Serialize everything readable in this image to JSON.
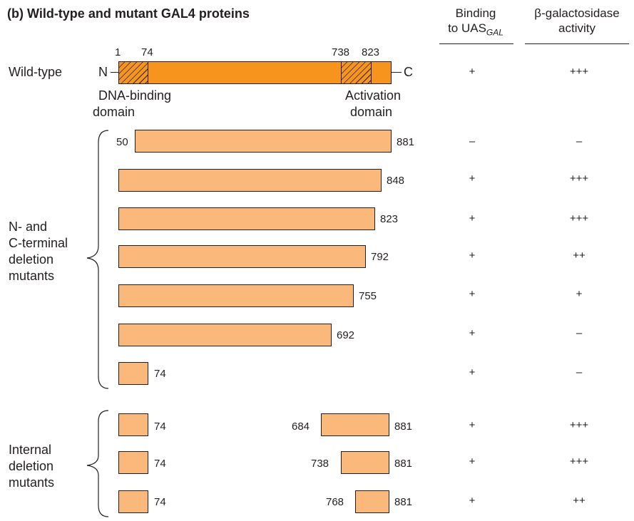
{
  "title": "(b)  Wild-type and mutant GAL4 proteins",
  "columns": {
    "binding_line1": "Binding",
    "binding_line2": "to UAS",
    "binding_sub": "GAL",
    "activity_line1": "β-galactosidase",
    "activity_line2": "activity"
  },
  "wild_type": {
    "label": "Wild-type",
    "n_term": "N",
    "c_term": "C",
    "pos_1": "1",
    "pos_74": "74",
    "pos_738": "738",
    "pos_823": "823",
    "dna_binding_line1": "DNA-binding",
    "dna_binding_line2": "domain",
    "activation_line1": "Activation",
    "activation_line2": "domain",
    "binding": "+",
    "activity": "+++"
  },
  "group_nc": {
    "label_line1": "N- and",
    "label_line2": "C-terminal",
    "label_line3": "deletion",
    "label_line4": "mutants"
  },
  "nc_mutants": [
    {
      "start": "50",
      "end": "881",
      "binding": "–",
      "activity": "–"
    },
    {
      "start": "",
      "end": "848",
      "binding": "+",
      "activity": "+++"
    },
    {
      "start": "",
      "end": "823",
      "binding": "+",
      "activity": "+++"
    },
    {
      "start": "",
      "end": "792",
      "binding": "+",
      "activity": "++"
    },
    {
      "start": "",
      "end": "755",
      "binding": "+",
      "activity": "+"
    },
    {
      "start": "",
      "end": "692",
      "binding": "+",
      "activity": "–"
    },
    {
      "start": "",
      "end": "74",
      "binding": "+",
      "activity": "–"
    }
  ],
  "group_internal": {
    "label_line1": "Internal",
    "label_line2": "deletion",
    "label_line3": "mutants"
  },
  "internal_mutants": [
    {
      "left_end": "74",
      "right_start": "684",
      "right_end": "881",
      "binding": "+",
      "activity": "+++"
    },
    {
      "left_end": "74",
      "right_start": "738",
      "right_end": "881",
      "binding": "+",
      "activity": "+++"
    },
    {
      "left_end": "74",
      "right_start": "768",
      "right_end": "881",
      "binding": "+",
      "activity": "++"
    }
  ]
}
